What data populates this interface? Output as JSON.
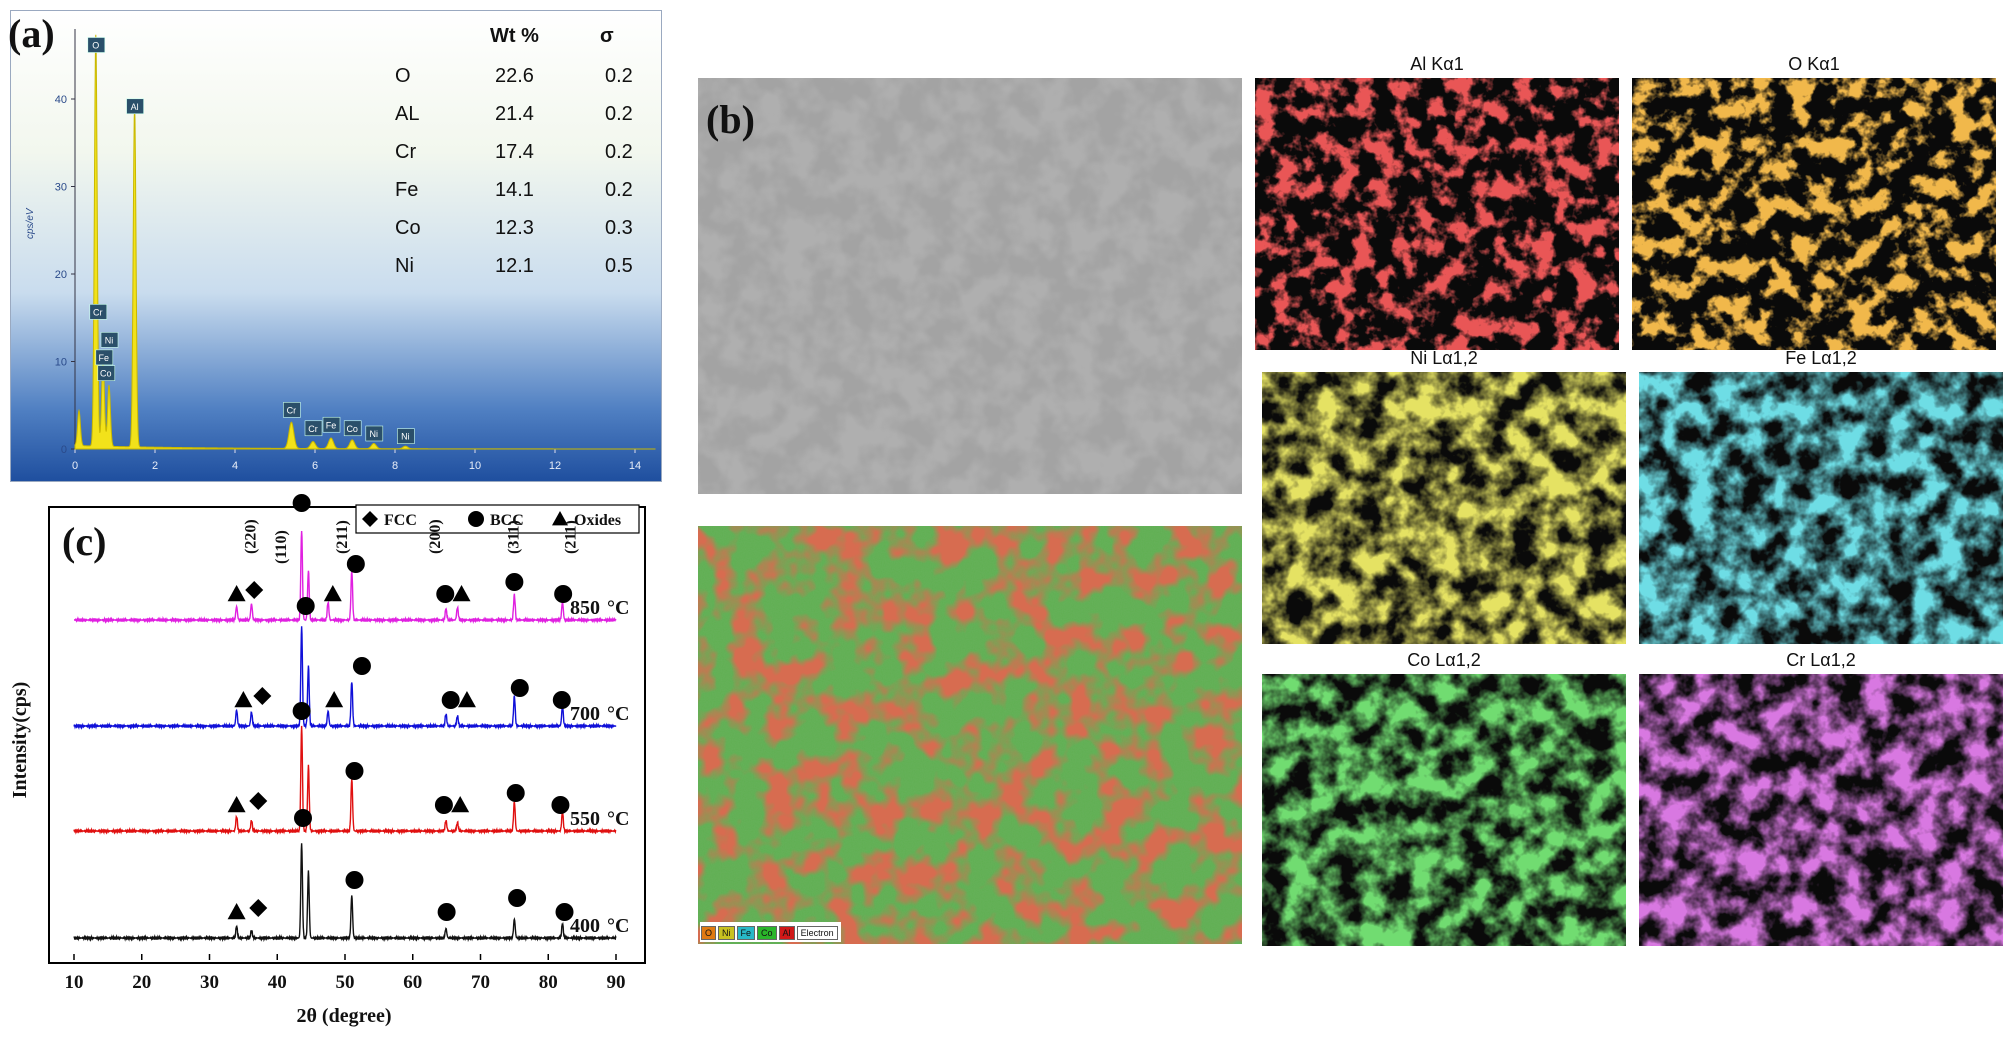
{
  "panel_a": {
    "label": "(a)",
    "table": {
      "headers": [
        "",
        "Wt %",
        "σ"
      ],
      "rows": [
        [
          "O",
          "22.6",
          "0.2"
        ],
        [
          "AL",
          "21.4",
          "0.2"
        ],
        [
          "Cr",
          "17.4",
          "0.2"
        ],
        [
          "Fe",
          "14.1",
          "0.2"
        ],
        [
          "Co",
          "12.3",
          "0.3"
        ],
        [
          "Ni",
          "12.1",
          "0.5"
        ]
      ]
    },
    "ylabel": "cps/eV",
    "yticks": [
      "0",
      "10",
      "20",
      "30",
      "40"
    ],
    "xticks": [
      "0",
      "2",
      "4",
      "6",
      "8",
      "10",
      "12",
      "14"
    ],
    "peak_labels": [
      "O",
      "Al",
      "Cr",
      "Ni",
      "Fe",
      "Co",
      "Cr",
      "Cr",
      "Fe",
      "Co",
      "Ni",
      "Ni"
    ]
  },
  "panel_b": {
    "label": "(b)",
    "map_titles": [
      "Al Kα1",
      "O Kα1",
      "Ni Lα1,2",
      "Fe Lα1,2",
      "Co Lα1,2",
      "Cr Lα1,2"
    ],
    "legend": [
      "O",
      "Ni",
      "Fe",
      "Co",
      "Al",
      "Electron"
    ],
    "map_colors": {
      "Al": "#d01818",
      "O": "#e07a12",
      "Ni": "#c8c220",
      "Fe": "#28b8c8",
      "Co": "#2ab62a",
      "Cr": "#b030c0"
    }
  },
  "panel_c": {
    "label": "(c)",
    "legend": [
      "FCC",
      "BCC",
      "Oxides"
    ],
    "xlabel": "2θ (degree)",
    "ylabel": "Intensity(cps)",
    "temperatures": [
      "850",
      "700",
      "550",
      "400"
    ],
    "temp_unit": "°C",
    "hkl_labels": [
      "(220)",
      "(110)",
      "(211)",
      "(200)",
      "(311)",
      "(211)"
    ]
  },
  "chart_data": [
    {
      "type": "line",
      "title": "",
      "xlabel": "",
      "ylabel": "cps/eV",
      "xlim": [
        0,
        14.5
      ],
      "ylim": [
        0,
        48
      ],
      "x": [
        0.1,
        0.52,
        0.7,
        0.85,
        1.49,
        5.41,
        5.95,
        6.4,
        6.93,
        7.47,
        8.26
      ],
      "series": [
        {
          "values": [
            4,
            47,
            10,
            7,
            39,
            3,
            0.8,
            1.2,
            1.0,
            0.6,
            0.3
          ]
        }
      ]
    },
    {
      "type": "line",
      "title": "",
      "xlabel": "2θ (degree)",
      "ylabel": "Intensity(cps)",
      "xlim": [
        10,
        90
      ],
      "xticks": [
        10,
        20,
        30,
        40,
        50,
        60,
        70,
        80,
        90
      ],
      "series": [
        {
          "name": "850°C",
          "peaks": [
            [
              34.0,
              0.15
            ],
            [
              36.2,
              0.18
            ],
            [
              43.6,
              1.0
            ],
            [
              44.6,
              0.55
            ],
            [
              47.5,
              0.2
            ],
            [
              51.0,
              0.55
            ],
            [
              64.9,
              0.12
            ],
            [
              66.6,
              0.14
            ],
            [
              75.0,
              0.28
            ],
            [
              82.1,
              0.2
            ]
          ]
        },
        {
          "name": "700°C",
          "peaks": [
            [
              34.0,
              0.16
            ],
            [
              36.2,
              0.14
            ],
            [
              43.6,
              1.0
            ],
            [
              44.6,
              0.6
            ],
            [
              47.5,
              0.15
            ],
            [
              51.0,
              0.45
            ],
            [
              64.9,
              0.12
            ],
            [
              66.6,
              0.1
            ],
            [
              75.0,
              0.3
            ],
            [
              82.1,
              0.2
            ]
          ]
        },
        {
          "name": "550°C",
          "peaks": [
            [
              34.0,
              0.14
            ],
            [
              36.2,
              0.1
            ],
            [
              43.6,
              1.0
            ],
            [
              44.6,
              0.62
            ],
            [
              51.0,
              0.5
            ],
            [
              64.9,
              0.1
            ],
            [
              66.6,
              0.08
            ],
            [
              75.0,
              0.28
            ],
            [
              82.1,
              0.18
            ]
          ]
        },
        {
          "name": "400°C",
          "peaks": [
            [
              34.0,
              0.12
            ],
            [
              36.2,
              0.08
            ],
            [
              43.6,
              1.0
            ],
            [
              44.6,
              0.7
            ],
            [
              51.0,
              0.45
            ],
            [
              64.9,
              0.1
            ],
            [
              75.0,
              0.2
            ],
            [
              82.1,
              0.15
            ]
          ]
        }
      ],
      "series_colors": [
        "#e020e0",
        "#1010d8",
        "#e01010",
        "#111111"
      ]
    }
  ]
}
